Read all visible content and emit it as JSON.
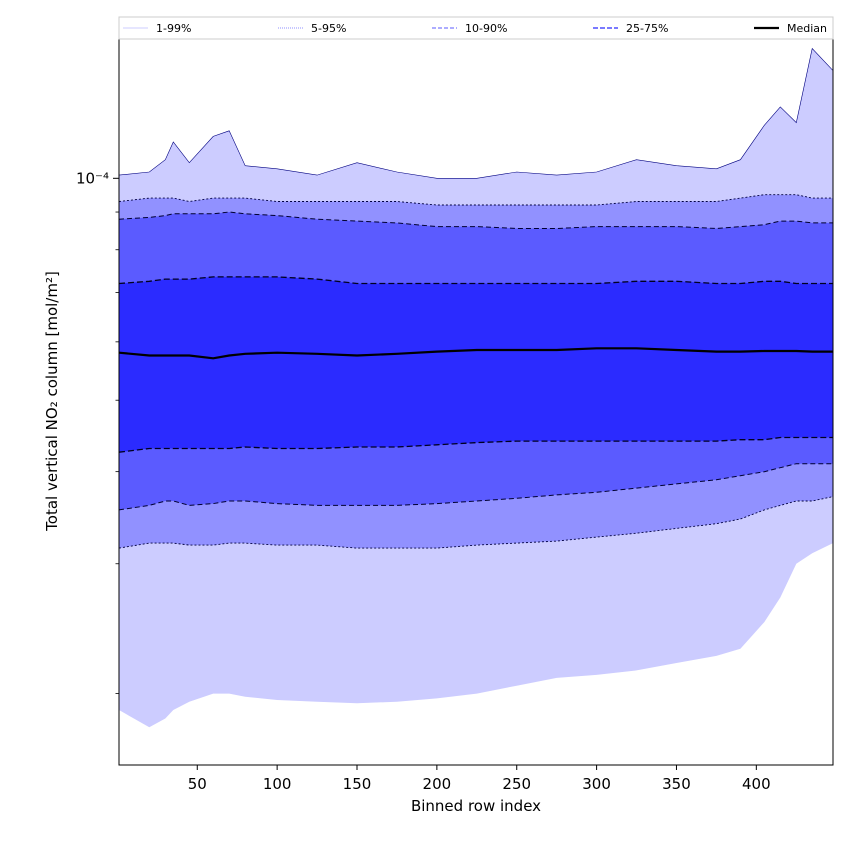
{
  "chart_data": {
    "type": "area",
    "xlabel": "Binned row index",
    "ylabel": "Total vertical NO₂ column [mol/m²]",
    "yscale": "log",
    "xlim": [
      1,
      448
    ],
    "ylim": [
      1.6e-05,
      0.000155
    ],
    "x_ticks": [
      50,
      100,
      150,
      200,
      250,
      300,
      350,
      400
    ],
    "y_ticks": [
      0.0001
    ],
    "y_tick_labels": [
      "10⁻⁴"
    ],
    "grid": false,
    "legend_position": "top",
    "legend": [
      {
        "label": "1-99%",
        "style": "solid"
      },
      {
        "label": "5-95%",
        "style": "dotted"
      },
      {
        "label": "10-90%",
        "style": "dashed"
      },
      {
        "label": "25-75%",
        "style": "dashed"
      },
      {
        "label": "Median",
        "style": "solid"
      }
    ],
    "x": [
      1,
      20,
      30,
      35,
      45,
      60,
      70,
      80,
      100,
      125,
      150,
      175,
      200,
      225,
      250,
      275,
      300,
      325,
      350,
      375,
      390,
      405,
      415,
      425,
      435,
      448
    ],
    "bands": [
      {
        "name": "1-99%",
        "fill": "#ccccff",
        "upper": [
          0.000101,
          0.000102,
          0.000106,
          0.000112,
          0.000105,
          0.000114,
          0.000116,
          0.000104,
          0.000103,
          0.000101,
          0.000105,
          0.000102,
          0.0001,
          0.0001,
          0.000102,
          0.000101,
          0.000102,
          0.000106,
          0.000104,
          0.000103,
          0.000106,
          0.000118,
          0.000125,
          0.000119,
          0.00015,
          0.00014
        ],
        "lower": [
          1.9e-05,
          1.8e-05,
          1.85e-05,
          1.9e-05,
          1.95e-05,
          2e-05,
          2e-05,
          1.98e-05,
          1.96e-05,
          1.95e-05,
          1.94e-05,
          1.95e-05,
          1.97e-05,
          2e-05,
          2.05e-05,
          2.1e-05,
          2.12e-05,
          2.15e-05,
          2.2e-05,
          2.25e-05,
          2.3e-05,
          2.5e-05,
          2.7e-05,
          3e-05,
          3.1e-05,
          3.2e-05
        ]
      },
      {
        "name": "5-95%",
        "fill": "#9191ff",
        "upper": [
          9.3e-05,
          9.4e-05,
          9.4e-05,
          9.4e-05,
          9.3e-05,
          9.4e-05,
          9.4e-05,
          9.4e-05,
          9.3e-05,
          9.3e-05,
          9.3e-05,
          9.3e-05,
          9.2e-05,
          9.2e-05,
          9.2e-05,
          9.2e-05,
          9.2e-05,
          9.3e-05,
          9.3e-05,
          9.3e-05,
          9.4e-05,
          9.5e-05,
          9.5e-05,
          9.5e-05,
          9.4e-05,
          9.4e-05
        ],
        "lower": [
          3.15e-05,
          3.2e-05,
          3.2e-05,
          3.2e-05,
          3.18e-05,
          3.18e-05,
          3.2e-05,
          3.2e-05,
          3.18e-05,
          3.18e-05,
          3.15e-05,
          3.15e-05,
          3.15e-05,
          3.18e-05,
          3.2e-05,
          3.22e-05,
          3.26e-05,
          3.3e-05,
          3.35e-05,
          3.4e-05,
          3.45e-05,
          3.55e-05,
          3.6e-05,
          3.65e-05,
          3.65e-05,
          3.7e-05
        ]
      },
      {
        "name": "10-90%",
        "fill": "#5b5bff",
        "upper": [
          8.8e-05,
          8.85e-05,
          8.9e-05,
          8.95e-05,
          8.95e-05,
          8.95e-05,
          9e-05,
          8.95e-05,
          8.9e-05,
          8.8e-05,
          8.75e-05,
          8.7e-05,
          8.6e-05,
          8.6e-05,
          8.55e-05,
          8.55e-05,
          8.6e-05,
          8.6e-05,
          8.6e-05,
          8.55e-05,
          8.6e-05,
          8.65e-05,
          8.75e-05,
          8.75e-05,
          8.7e-05,
          8.7e-05
        ],
        "lower": [
          3.55e-05,
          3.6e-05,
          3.65e-05,
          3.65e-05,
          3.6e-05,
          3.62e-05,
          3.65e-05,
          3.65e-05,
          3.62e-05,
          3.6e-05,
          3.6e-05,
          3.6e-05,
          3.62e-05,
          3.65e-05,
          3.68e-05,
          3.72e-05,
          3.75e-05,
          3.8e-05,
          3.85e-05,
          3.9e-05,
          3.95e-05,
          4e-05,
          4.05e-05,
          4.1e-05,
          4.1e-05,
          4.1e-05
        ]
      },
      {
        "name": "25-75%",
        "fill": "#2b2bff",
        "upper": [
          7.2e-05,
          7.25e-05,
          7.3e-05,
          7.3e-05,
          7.3e-05,
          7.35e-05,
          7.35e-05,
          7.35e-05,
          7.35e-05,
          7.3e-05,
          7.2e-05,
          7.2e-05,
          7.2e-05,
          7.2e-05,
          7.2e-05,
          7.2e-05,
          7.2e-05,
          7.25e-05,
          7.25e-05,
          7.2e-05,
          7.2e-05,
          7.25e-05,
          7.25e-05,
          7.2e-05,
          7.2e-05,
          7.2e-05
        ],
        "lower": [
          4.25e-05,
          4.3e-05,
          4.3e-05,
          4.3e-05,
          4.3e-05,
          4.3e-05,
          4.3e-05,
          4.32e-05,
          4.3e-05,
          4.3e-05,
          4.32e-05,
          4.32e-05,
          4.35e-05,
          4.38e-05,
          4.4e-05,
          4.4e-05,
          4.4e-05,
          4.4e-05,
          4.4e-05,
          4.4e-05,
          4.42e-05,
          4.42e-05,
          4.45e-05,
          4.45e-05,
          4.45e-05,
          4.45e-05
        ]
      }
    ],
    "series": [
      {
        "name": "Median",
        "color": "#000000",
        "values": [
          5.8e-05,
          5.75e-05,
          5.75e-05,
          5.75e-05,
          5.75e-05,
          5.7e-05,
          5.75e-05,
          5.78e-05,
          5.8e-05,
          5.78e-05,
          5.75e-05,
          5.78e-05,
          5.82e-05,
          5.85e-05,
          5.85e-05,
          5.85e-05,
          5.88e-05,
          5.88e-05,
          5.85e-05,
          5.82e-05,
          5.82e-05,
          5.83e-05,
          5.83e-05,
          5.83e-05,
          5.82e-05,
          5.82e-05
        ]
      }
    ]
  },
  "colors": {
    "band_1_99": "#ccccff",
    "band_5_95": "#9191ff",
    "band_10_90": "#5b5bff",
    "band_25_75": "#2b2bff",
    "median": "#000000"
  }
}
